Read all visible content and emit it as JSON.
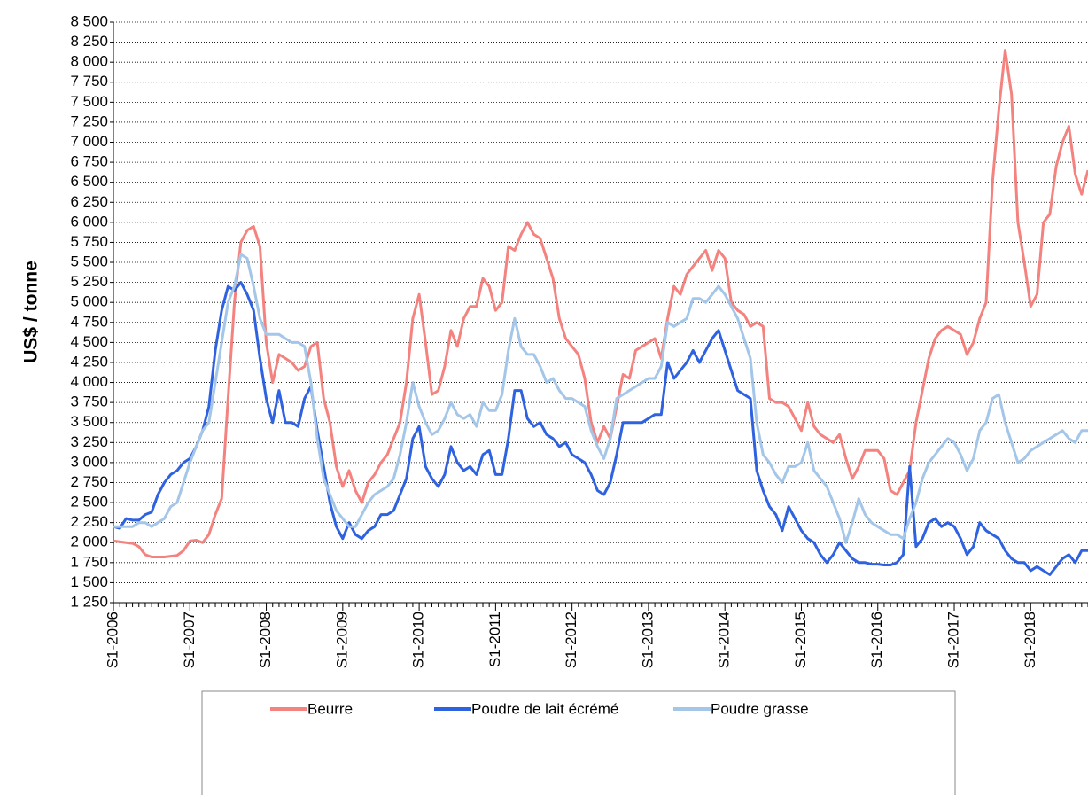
{
  "chart_data": {
    "type": "line",
    "y_label": "US$ / tonne",
    "categories": [
      "S1-2006",
      null,
      null,
      null,
      null,
      null,
      null,
      null,
      null,
      null,
      null,
      null,
      "S1-2007",
      null,
      null,
      null,
      null,
      null,
      null,
      null,
      null,
      null,
      null,
      null,
      "S1-2008",
      null,
      null,
      null,
      null,
      null,
      null,
      null,
      null,
      null,
      null,
      null,
      "S1-2009",
      null,
      null,
      null,
      null,
      null,
      null,
      null,
      null,
      null,
      null,
      null,
      "S1-2010",
      null,
      null,
      null,
      null,
      null,
      null,
      null,
      null,
      null,
      null,
      null,
      "S1-2011",
      null,
      null,
      null,
      null,
      null,
      null,
      null,
      null,
      null,
      null,
      null,
      "S1-2012",
      null,
      null,
      null,
      null,
      null,
      null,
      null,
      null,
      null,
      null,
      null,
      "S1-2013",
      null,
      null,
      null,
      null,
      null,
      null,
      null,
      null,
      null,
      null,
      null,
      "S1-2014",
      null,
      null,
      null,
      null,
      null,
      null,
      null,
      null,
      null,
      null,
      null,
      "S1-2015",
      null,
      null,
      null,
      null,
      null,
      null,
      null,
      null,
      null,
      null,
      null,
      "S1-2016",
      null,
      null,
      null,
      null,
      null,
      null,
      null,
      null,
      null,
      null,
      null,
      "S1-2017",
      null,
      null,
      null,
      null,
      null,
      null,
      null,
      null,
      null,
      null,
      null,
      "S1-2018",
      null,
      null,
      null,
      null,
      null,
      null,
      null,
      null,
      null
    ],
    "series": [
      {
        "name": "Beurre",
        "color": "#f4837f",
        "values": [
          2020,
          2010,
          2000,
          1990,
          1950,
          1850,
          1820,
          1820,
          1820,
          1830,
          1840,
          1900,
          2020,
          2030,
          2000,
          2100,
          2350,
          2550,
          3800,
          5000,
          5750,
          5900,
          5950,
          5700,
          4500,
          4000,
          4350,
          4300,
          4250,
          4150,
          4200,
          4450,
          4500,
          3800,
          3500,
          2950,
          2700,
          2900,
          2650,
          2500,
          2750,
          2850,
          3000,
          3100,
          3300,
          3500,
          4000,
          4800,
          5100,
          4500,
          3850,
          3900,
          4200,
          4650,
          4450,
          4800,
          4950,
          4950,
          5300,
          5200,
          4900,
          5000,
          5700,
          5650,
          5850,
          6000,
          5850,
          5800,
          5550,
          5300,
          4800,
          4550,
          4450,
          4350,
          4050,
          3500,
          3250,
          3450,
          3300,
          3700,
          4100,
          4050,
          4400,
          4450,
          4500,
          4550,
          4300,
          4800,
          5200,
          5100,
          5350,
          5450,
          5550,
          5650,
          5400,
          5650,
          5550,
          5000,
          4900,
          4850,
          4700,
          4750,
          4700,
          3800,
          3750,
          3750,
          3700,
          3550,
          3400,
          3750,
          3450,
          3350,
          3300,
          3250,
          3350,
          3050,
          2800,
          2950,
          3150,
          3150,
          3150,
          3050,
          2650,
          2600,
          2750,
          2900,
          3500,
          3900,
          4300,
          4550,
          4650,
          4700,
          4650,
          4600,
          4350,
          4500,
          4800,
          5000,
          6500,
          7400,
          8150,
          7600,
          6000,
          5500,
          4950,
          5100,
          6000,
          6100,
          6700,
          7000,
          7200,
          6600,
          6350,
          6650
        ]
      },
      {
        "name": "Poudre de lait écrémé",
        "color": "#2f62e0",
        "values": [
          2200,
          2180,
          2300,
          2280,
          2280,
          2350,
          2380,
          2600,
          2750,
          2850,
          2900,
          3000,
          3050,
          3200,
          3400,
          3700,
          4400,
          4900,
          5200,
          5150,
          5250,
          5100,
          4900,
          4300,
          3800,
          3500,
          3900,
          3500,
          3500,
          3450,
          3800,
          3950,
          3400,
          2950,
          2500,
          2200,
          2050,
          2250,
          2100,
          2050,
          2150,
          2200,
          2350,
          2350,
          2400,
          2600,
          2800,
          3300,
          3450,
          2950,
          2800,
          2700,
          2850,
          3200,
          3000,
          2900,
          2950,
          2850,
          3100,
          3150,
          2850,
          2850,
          3300,
          3900,
          3900,
          3550,
          3450,
          3500,
          3350,
          3300,
          3200,
          3250,
          3100,
          3050,
          3000,
          2850,
          2650,
          2600,
          2750,
          3100,
          3500,
          3500,
          3500,
          3500,
          3550,
          3600,
          3600,
          4250,
          4050,
          4150,
          4250,
          4400,
          4250,
          4400,
          4550,
          4650,
          4400,
          4150,
          3900,
          3850,
          3800,
          2900,
          2650,
          2450,
          2350,
          2150,
          2450,
          2300,
          2150,
          2050,
          2000,
          1850,
          1750,
          1850,
          2000,
          1900,
          1800,
          1750,
          1750,
          1730,
          1730,
          1720,
          1720,
          1750,
          1850,
          2950,
          1950,
          2050,
          2250,
          2300,
          2200,
          2250,
          2200,
          2050,
          1850,
          1950,
          2250,
          2150,
          2100,
          2050,
          1900,
          1800,
          1750,
          1750,
          1650,
          1700,
          1650,
          1600,
          1700,
          1800,
          1850,
          1750,
          1900,
          1900
        ]
      },
      {
        "name": "Poudre grasse",
        "color": "#a3c6e9",
        "values": [
          2200,
          2200,
          2200,
          2200,
          2250,
          2250,
          2200,
          2250,
          2300,
          2450,
          2500,
          2750,
          3000,
          3200,
          3400,
          3500,
          4000,
          4500,
          5000,
          5200,
          5600,
          5550,
          5200,
          4800,
          4600,
          4600,
          4600,
          4550,
          4500,
          4500,
          4450,
          4000,
          3300,
          2800,
          2600,
          2400,
          2300,
          2200,
          2200,
          2350,
          2500,
          2600,
          2650,
          2700,
          2800,
          3100,
          3500,
          4000,
          3700,
          3500,
          3350,
          3400,
          3550,
          3750,
          3600,
          3550,
          3600,
          3450,
          3750,
          3650,
          3650,
          3850,
          4400,
          4800,
          4450,
          4350,
          4350,
          4200,
          4000,
          4050,
          3900,
          3800,
          3800,
          3750,
          3700,
          3400,
          3200,
          3050,
          3300,
          3800,
          3850,
          3900,
          3950,
          4000,
          4050,
          4050,
          4200,
          4750,
          4700,
          4750,
          4800,
          5050,
          5050,
          5000,
          5100,
          5200,
          5100,
          4950,
          4800,
          4550,
          4300,
          3500,
          3100,
          3000,
          2850,
          2750,
          2950,
          2950,
          3000,
          3250,
          2900,
          2800,
          2700,
          2500,
          2300,
          2000,
          2250,
          2550,
          2350,
          2250,
          2200,
          2150,
          2100,
          2100,
          2050,
          2300,
          2500,
          2800,
          3000,
          3100,
          3200,
          3300,
          3250,
          3100,
          2900,
          3050,
          3400,
          3500,
          3800,
          3850,
          3500,
          3250,
          3000,
          3050,
          3150,
          3200,
          3250,
          3300,
          3350,
          3400,
          3300,
          3250,
          3400,
          3400
        ]
      }
    ],
    "ylim": [
      1250,
      8500
    ],
    "yticks": [
      {
        "value": 1250,
        "label": "1 250"
      },
      {
        "value": 1500,
        "label": "1 500"
      },
      {
        "value": 1750,
        "label": "1 750"
      },
      {
        "value": 2000,
        "label": "2 000"
      },
      {
        "value": 2250,
        "label": "2 250"
      },
      {
        "value": 2500,
        "label": "2 500"
      },
      {
        "value": 2750,
        "label": "2 750"
      },
      {
        "value": 3000,
        "label": "3 000"
      },
      {
        "value": 3250,
        "label": "3 250"
      },
      {
        "value": 3500,
        "label": "3 500"
      },
      {
        "value": 3750,
        "label": "3 750"
      },
      {
        "value": 4000,
        "label": "4 000"
      },
      {
        "value": 4250,
        "label": "4 250"
      },
      {
        "value": 4500,
        "label": "4 500"
      },
      {
        "value": 4750,
        "label": "4 750"
      },
      {
        "value": 5000,
        "label": "5 000"
      },
      {
        "value": 5250,
        "label": "5 250"
      },
      {
        "value": 5500,
        "label": "5 500"
      },
      {
        "value": 5750,
        "label": "5 750"
      },
      {
        "value": 6000,
        "label": "6 000"
      },
      {
        "value": 6250,
        "label": "6 250"
      },
      {
        "value": 6500,
        "label": "6 500"
      },
      {
        "value": 6750,
        "label": "6 750"
      },
      {
        "value": 7000,
        "label": "7 000"
      },
      {
        "value": 7250,
        "label": "7 250"
      },
      {
        "value": 7500,
        "label": "7 500"
      },
      {
        "value": 7750,
        "label": "7 750"
      },
      {
        "value": 8000,
        "label": "8 000"
      },
      {
        "value": 8250,
        "label": "8 250"
      },
      {
        "value": 8500,
        "label": "8 500"
      }
    ],
    "grid": true,
    "legend": "bottom"
  }
}
